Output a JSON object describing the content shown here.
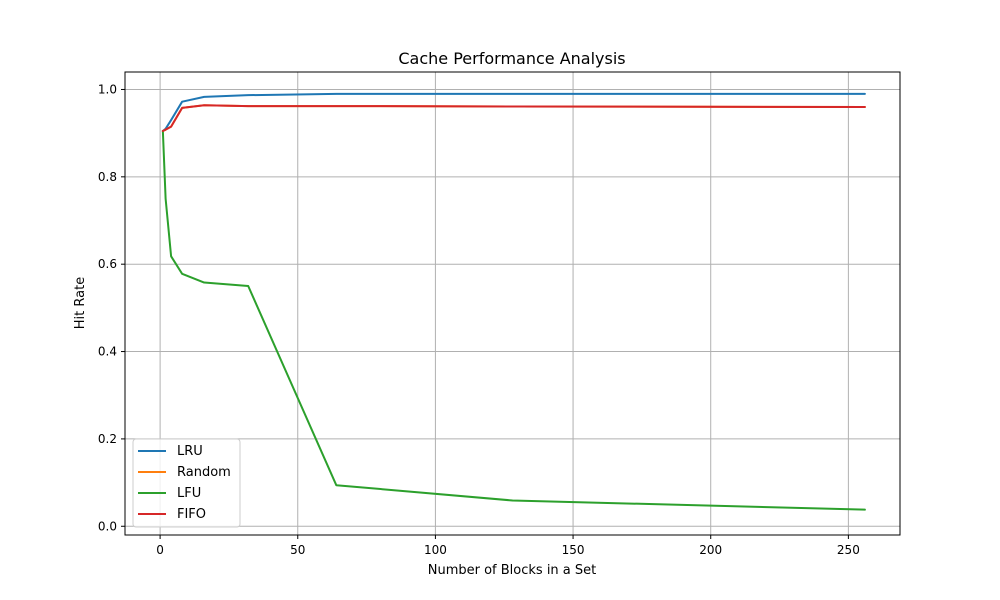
{
  "chart_data": {
    "type": "line",
    "title": "Cache Performance Analysis",
    "xlabel": "Number of Blocks in a Set",
    "ylabel": "Hit Rate",
    "xlim": [
      -12.75,
      268.75
    ],
    "ylim": [
      -0.02,
      1.04
    ],
    "xticks": [
      0,
      50,
      100,
      150,
      200,
      250
    ],
    "yticks": [
      0.0,
      0.2,
      0.4,
      0.6,
      0.8,
      1.0
    ],
    "grid": true,
    "legend_position": "lower-left",
    "x": [
      1,
      2,
      4,
      8,
      16,
      32,
      64,
      128,
      256
    ],
    "series": [
      {
        "name": "LRU",
        "color": "#1f77b4",
        "values": [
          0.905,
          0.91,
          0.93,
          0.972,
          0.983,
          0.987,
          0.99,
          0.99,
          0.99
        ]
      },
      {
        "name": "Random",
        "color": "#ff7f0e",
        "values": [
          0.905,
          0.908,
          0.915,
          0.958,
          0.964,
          0.962,
          0.962,
          0.961,
          0.96
        ]
      },
      {
        "name": "LFU",
        "color": "#2ca02c",
        "values": [
          0.905,
          0.75,
          0.618,
          0.578,
          0.558,
          0.55,
          0.094,
          0.059,
          0.038
        ]
      },
      {
        "name": "FIFO",
        "color": "#d62728",
        "values": [
          0.905,
          0.908,
          0.915,
          0.958,
          0.964,
          0.962,
          0.962,
          0.961,
          0.96
        ]
      }
    ]
  }
}
